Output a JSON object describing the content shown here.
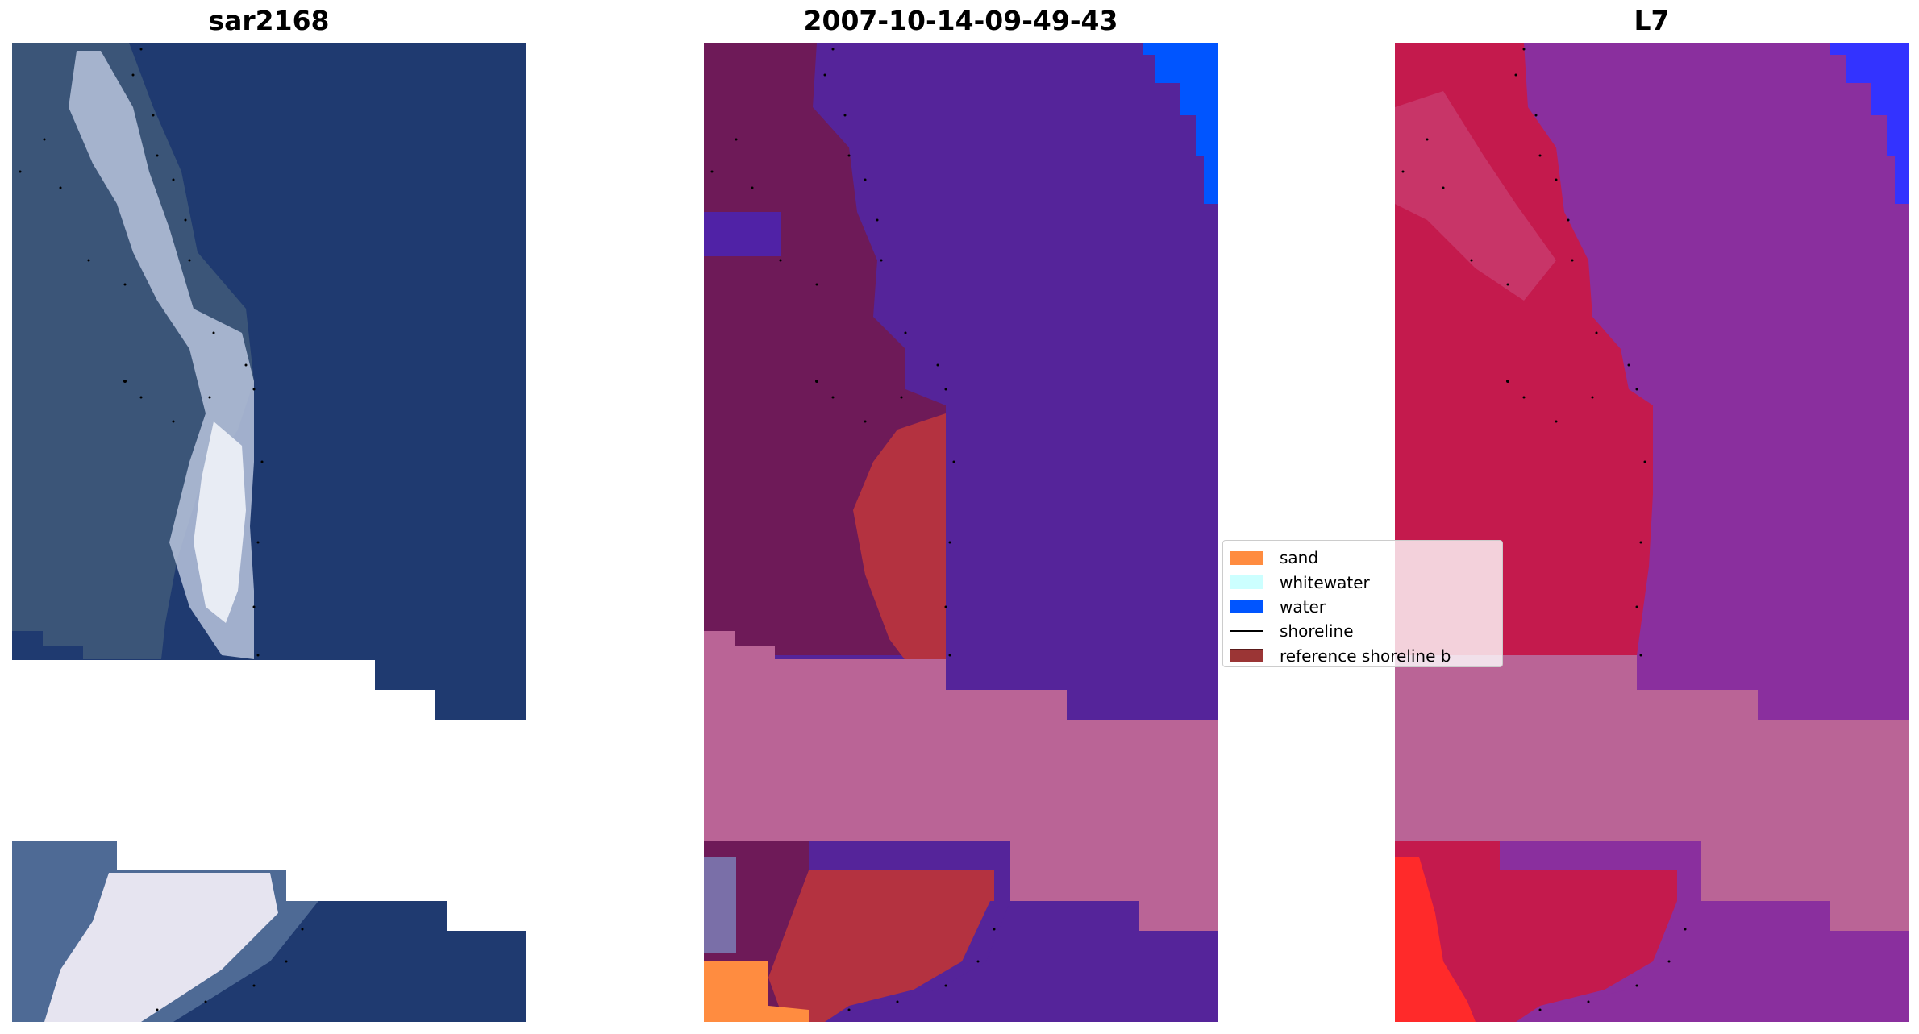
{
  "panels": [
    {
      "title": "sar2168"
    },
    {
      "title": "2007-10-14-09-49-43"
    },
    {
      "title": "L7"
    }
  ],
  "legend": {
    "items": [
      {
        "label": "sand",
        "kind": "patch",
        "color": "#ff8c40"
      },
      {
        "label": "whitewater",
        "kind": "patch",
        "color": "#ccffff"
      },
      {
        "label": "water",
        "kind": "patch",
        "color": "#0055ff"
      },
      {
        "label": "shoreline",
        "kind": "line",
        "color": "#000000"
      },
      {
        "label": "reference shoreline b",
        "kind": "patch",
        "color": "#9b3535"
      }
    ]
  },
  "colors": {
    "sar_water": "#1f3a70",
    "sar_land": "#3c5a82",
    "sar_sand": "#c8d2e6",
    "class_water": "#55249a",
    "class_land": "#6e1a58",
    "class_sand": "#b43240",
    "class_nodata": "#ba6496",
    "class_blue": "#0055ff",
    "class_orange": "#ff8c40",
    "l7_water": "#8a2f9e",
    "l7_land": "#c41a4d",
    "l7_nodata": "#ba6496",
    "l7_red": "#ff2a2a",
    "l7_blue": "#3333ff"
  }
}
